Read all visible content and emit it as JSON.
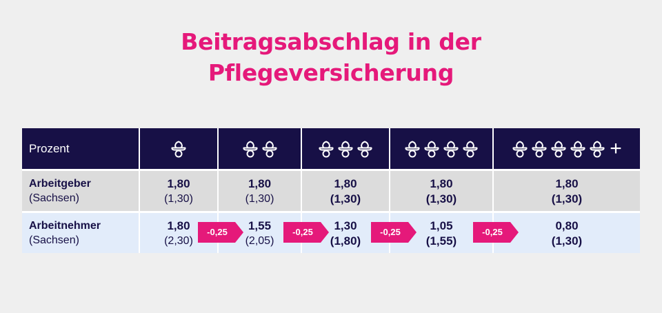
{
  "title": {
    "line1": "Beitragsabschlag in der",
    "line2": "Pflegeversicherung"
  },
  "table": {
    "header_label": "Prozent",
    "columns": [
      {
        "children_icons": 1,
        "plus": false
      },
      {
        "children_icons": 2,
        "plus": false
      },
      {
        "children_icons": 3,
        "plus": false
      },
      {
        "children_icons": 4,
        "plus": false
      },
      {
        "children_icons": 5,
        "plus": true,
        "plus_symbol": "+"
      }
    ],
    "rows": [
      {
        "label": "Arbeitgeber",
        "sublabel": "(Sachsen)",
        "values": [
          {
            "main": "1,80",
            "sub": "(1,30)"
          },
          {
            "main": "1,80",
            "sub": "(1,30)"
          },
          {
            "main": "1,80",
            "sub": "(1,30)"
          },
          {
            "main": "1,80",
            "sub": "(1,30)"
          },
          {
            "main": "1,80",
            "sub": "(1,30)"
          }
        ]
      },
      {
        "label": "Arbeitnehmer",
        "sublabel": "(Sachsen)",
        "values": [
          {
            "main": "1,80",
            "sub": "(2,30)"
          },
          {
            "main": "1,55",
            "sub": "(2,05)"
          },
          {
            "main": "1,30",
            "sub": "(1,80)"
          },
          {
            "main": "1,05",
            "sub": "(1,55)"
          },
          {
            "main": "0,80",
            "sub": "(1,30)"
          }
        ]
      }
    ],
    "reductions": [
      "-0,25",
      "-0,25",
      "-0,25",
      "-0,25"
    ]
  },
  "colors": {
    "accent": "#e5197a",
    "header_bg": "#171046",
    "row1_bg": "#dcdcdc",
    "row2_bg": "#e2ecfa",
    "background": "#efefef"
  },
  "icon_name": "pacifier-icon"
}
